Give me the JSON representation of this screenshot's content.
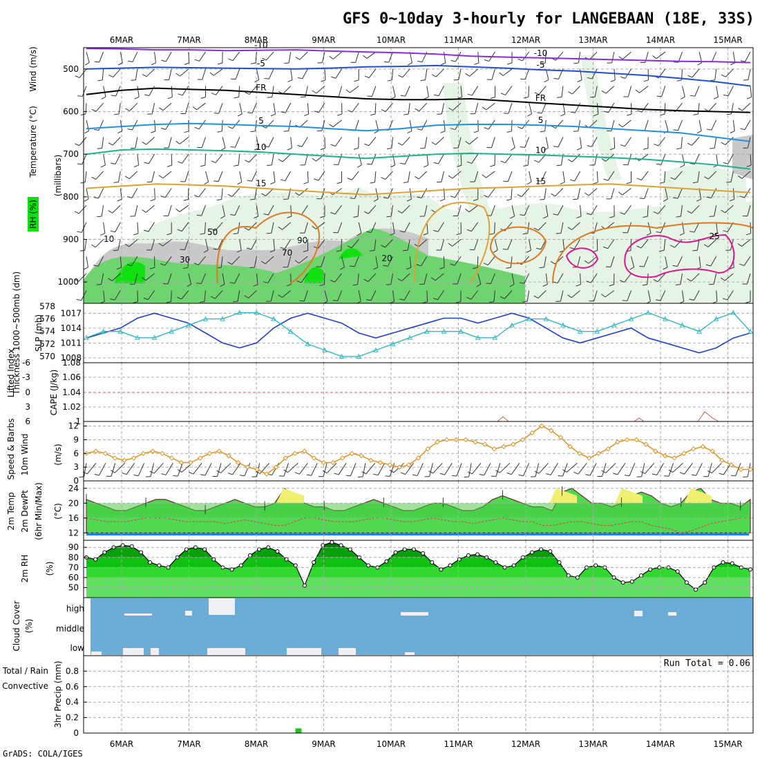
{
  "title": "GFS 0~10day 3-hourly for LANGEBAAN (18E, 33S)",
  "footer": "GrADS: COLA/IGES",
  "dates": [
    "6MAR",
    "7MAR",
    "8MAR",
    "9MAR",
    "10MAR",
    "11MAR",
    "12MAR",
    "13MAR",
    "14MAR",
    "15MAR"
  ],
  "colors": {
    "rh_light": "#e6f4e6",
    "rh_mid": "#c9c9c9",
    "rh_dark": "#6fd46f",
    "rh_bright": "#10e010",
    "t_neg10": "#8a2be2",
    "t_neg5": "#1f4fd6",
    "t_fr": "#000000",
    "t_5": "#1f90e8",
    "t_10": "#19b48c",
    "t_15": "#e0a030",
    "t_20": "#e07820",
    "t_25": "#e0148c",
    "slp": "#1f3fd0",
    "thick": "#30b8c0",
    "wind10": "#e09020",
    "cloud_bg": "#6badd6",
    "cloud_cover": "#f0f0f4",
    "precip": "#20c020",
    "temp_fill": "#50d850",
    "temp_max": "#f0f070",
    "temp_band": "#2080e8",
    "rh_curve": "#008a00"
  },
  "chart_data": [
    {
      "type": "heatmap",
      "name": "vertical",
      "ylabel": "(millibars)",
      "side_labels": [
        "Wind (m/s)",
        "Temperature (°C)",
        "RH (%)"
      ],
      "y_ticks": [
        500,
        600,
        700,
        800,
        900,
        1000
      ],
      "ylim": [
        450,
        1050
      ],
      "temp_contours": [
        {
          "label": "-10",
          "levels": [
            452,
            453,
            455,
            455,
            457,
            456,
            455,
            458,
            460,
            462,
            465,
            470,
            472,
            474,
            476,
            478,
            480,
            482,
            483,
            485
          ]
        },
        {
          "label": "-5",
          "levels": [
            500,
            498,
            496,
            497,
            498,
            499,
            500,
            498,
            495,
            494,
            492,
            495,
            498,
            502,
            505,
            510,
            515,
            522,
            530,
            540
          ]
        },
        {
          "label": "FR",
          "levels": [
            560,
            550,
            545,
            548,
            550,
            555,
            560,
            565,
            570,
            572,
            572,
            570,
            575,
            580,
            585,
            590,
            595,
            598,
            600,
            602
          ]
        },
        {
          "label": "5",
          "levels": [
            640,
            635,
            630,
            628,
            630,
            633,
            635,
            640,
            645,
            640,
            632,
            630,
            630,
            632,
            635,
            640,
            645,
            650,
            660,
            670
          ]
        },
        {
          "label": "10",
          "levels": [
            700,
            690,
            688,
            690,
            692,
            695,
            700,
            705,
            710,
            705,
            700,
            698,
            700,
            702,
            705,
            708,
            712,
            718,
            725,
            735
          ]
        },
        {
          "label": "15",
          "levels": [
            780,
            775,
            770,
            772,
            775,
            780,
            785,
            790,
            795,
            790,
            785,
            780,
            778,
            775,
            772,
            770,
            775,
            780,
            785,
            790
          ]
        }
      ],
      "warm_contours": [
        "20",
        "25"
      ],
      "rh_values": [
        "10",
        "30",
        "50",
        "70",
        "90"
      ]
    },
    {
      "type": "line",
      "name": "slp_thickness",
      "ylabel_left": "Thickness 1000~500mb (dm)",
      "ylabel_right": "SLP (mb)",
      "thick_ticks": [
        570,
        572,
        574,
        576,
        578
      ],
      "slp_ticks": [
        1008,
        1011,
        1014,
        1017
      ],
      "thick_lim": [
        569,
        578.5
      ],
      "slp_lim": [
        1007,
        1019
      ],
      "slp": [
        1012,
        1013,
        1014,
        1016,
        1017,
        1016,
        1015,
        1013,
        1011,
        1010,
        1011,
        1014,
        1016,
        1017,
        1016,
        1015,
        1013,
        1012,
        1013,
        1014,
        1015,
        1016,
        1016,
        1015,
        1016,
        1017,
        1016,
        1014,
        1012,
        1011,
        1012,
        1013,
        1014,
        1012,
        1011,
        1010,
        1009,
        1010,
        1012,
        1013
      ],
      "thickness": [
        573,
        574,
        574,
        573,
        573,
        574,
        575,
        576,
        576,
        577,
        577,
        576,
        574,
        572,
        571,
        570,
        570,
        571,
        572,
        573,
        574,
        574,
        574,
        573,
        573,
        575,
        576,
        576,
        575,
        574,
        574,
        575,
        576,
        577,
        576,
        575,
        574,
        576,
        577,
        574
      ]
    },
    {
      "type": "line",
      "name": "stability",
      "ylabel_left": "Lifted Index",
      "ylabel_right": "CAPE (J/kg)",
      "li_ticks": [
        "6",
        "3",
        "0",
        "-3",
        "-6"
      ],
      "cape_ticks": [
        "1",
        "1.02",
        "1.04",
        "1.06",
        "1.08"
      ]
    },
    {
      "type": "line",
      "name": "wind10",
      "ylabel": "10m Wind Speed & Barbs (m/s)",
      "ylim": [
        0,
        13
      ],
      "y_ticks": [
        0,
        3,
        6,
        9,
        12
      ],
      "values": [
        6,
        6.5,
        6,
        5,
        4.5,
        5,
        6,
        6.5,
        6,
        5,
        4,
        4,
        5,
        6,
        6.5,
        5.5,
        4,
        3,
        2.5,
        1.5,
        3,
        5,
        6,
        6.5,
        5,
        4,
        4,
        5,
        6,
        5.5,
        4.5,
        4,
        3.5,
        3,
        3.5,
        5,
        7,
        8.5,
        9,
        9,
        9,
        8.5,
        8,
        7,
        7.5,
        8,
        9,
        10.5,
        12,
        11,
        9.5,
        7.5,
        6,
        5,
        6,
        7,
        8.5,
        9,
        9,
        8,
        6.5,
        5.5,
        5,
        6,
        7,
        7.5,
        6.5,
        4.5,
        3.5,
        2.5,
        2.5
      ]
    },
    {
      "type": "area",
      "name": "temp2m",
      "ylabel": "2m Temp / 2m DewPt (6hr Min/Max) (°C)",
      "ylim": [
        10,
        26
      ],
      "y_ticks": [
        12,
        16,
        20,
        24
      ],
      "temp": [
        21,
        20,
        19,
        18,
        18,
        19,
        20,
        21,
        21,
        20,
        19,
        18,
        18,
        19,
        20,
        21,
        20,
        19,
        19,
        20,
        24,
        22,
        20,
        19,
        19,
        18,
        18,
        19,
        20,
        21,
        20,
        19,
        18,
        18,
        19,
        20,
        20,
        19,
        18,
        18,
        19,
        21,
        22,
        21,
        20,
        19,
        19,
        18,
        23,
        24,
        22,
        20,
        20,
        19,
        20,
        22,
        23,
        22,
        20,
        19,
        20,
        23,
        24,
        21,
        20,
        20,
        19,
        21
      ],
      "dew": [
        16,
        15.5,
        15,
        15,
        15,
        15.5,
        16,
        16,
        16,
        15.5,
        15,
        15,
        15,
        15,
        14.5,
        15,
        15.5,
        15,
        14.5,
        14,
        14,
        15,
        16,
        16,
        15.5,
        15,
        15,
        15,
        15.5,
        16,
        16,
        15.5,
        15,
        15,
        15.5,
        16,
        15.5,
        15,
        15,
        14.5,
        15,
        15.5,
        16,
        15.5,
        15,
        15,
        14,
        14,
        14.5,
        15,
        15,
        14.5,
        14,
        14,
        14.5,
        15,
        15,
        14,
        13.5,
        13,
        12,
        12.5,
        13.5,
        14.5,
        15,
        15.5,
        16,
        16
      ]
    },
    {
      "type": "area",
      "name": "rh2m",
      "ylabel": "2m RH (%)",
      "ylim": [
        40,
        97
      ],
      "y_ticks": [
        50,
        60,
        70,
        80,
        90
      ],
      "values": [
        80,
        78,
        85,
        90,
        92,
        91,
        85,
        75,
        72,
        70,
        80,
        88,
        90,
        88,
        78,
        70,
        68,
        72,
        82,
        88,
        90,
        86,
        78,
        72,
        52,
        75,
        92,
        95,
        92,
        88,
        80,
        72,
        70,
        76,
        85,
        88,
        88,
        84,
        75,
        68,
        72,
        78,
        82,
        83,
        80,
        75,
        70,
        72,
        80,
        85,
        88,
        86,
        75,
        62,
        60,
        70,
        72,
        70,
        60,
        55,
        56,
        62,
        68,
        70,
        70,
        66,
        55,
        48,
        55,
        70,
        75,
        74,
        70,
        68
      ]
    },
    {
      "type": "heatmap",
      "name": "cloud",
      "ylabel": "Cloud Cover (%)",
      "levels": [
        "high",
        "middle",
        "low"
      ]
    },
    {
      "type": "bar",
      "name": "precip",
      "ylabel": "3hr Precip (mm)",
      "legend": [
        "Total / Rain",
        "Convective"
      ],
      "run_total": "Run Total = 0.06",
      "ylim": [
        0,
        1
      ],
      "y_ticks": [
        "0",
        "0.2",
        "0.4",
        "0.6",
        "0.8"
      ],
      "bars": [
        {
          "time": 2.62,
          "value": 0.06
        }
      ]
    }
  ]
}
